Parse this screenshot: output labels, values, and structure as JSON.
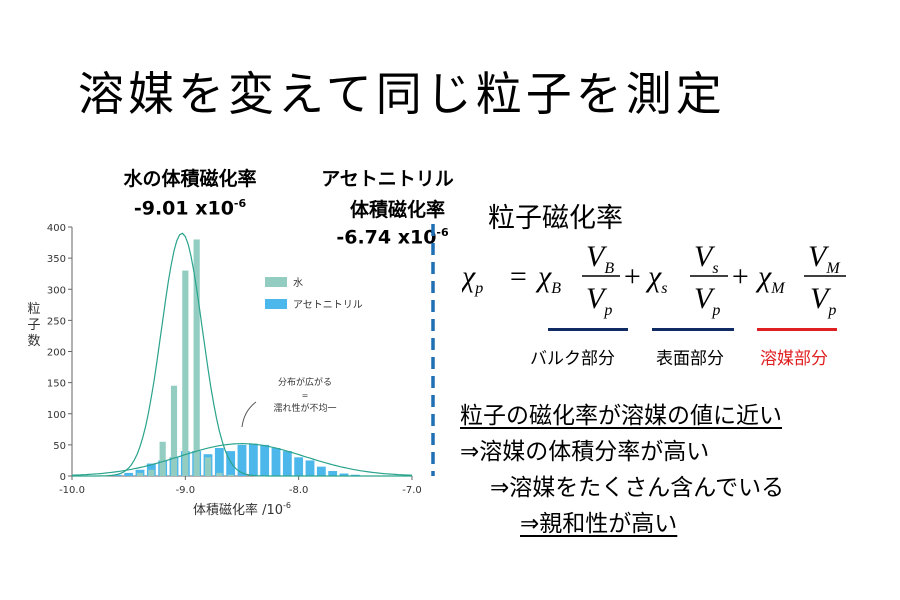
{
  "title": "溶媒を変えて同じ粒子を測定",
  "water_label": {
    "line1": "水の体積磁化率",
    "line2": "-9.01 x10",
    "exp": "-6"
  },
  "acn_label": {
    "line1": "アセトニトリル",
    "line2": "体積磁化率",
    "line3": "-6.74 x10",
    "exp": "-6"
  },
  "colors": {
    "water": "#93cdc2",
    "acetonitrile": "#4cb7ea",
    "dashed_line": "#1f6fb3",
    "blue_underline": "#102a63",
    "red_underline": "#e02020",
    "red_text": "#e02020"
  },
  "chart_data": {
    "type": "bar",
    "ylabel": "粒子数",
    "xlabel_main": "体積磁化率 /10",
    "xlabel_exp": "-6",
    "xlim": [
      -10.0,
      -7.0
    ],
    "ylim": [
      0,
      400
    ],
    "xticks": [
      "-10.0",
      "-9.0",
      "-8.0",
      "-7.0"
    ],
    "yticks": [
      "0",
      "50",
      "100",
      "150",
      "200",
      "250",
      "300",
      "350",
      "400"
    ],
    "legend": [
      "水",
      "アセトニトリル"
    ],
    "legend_position": "upper-right",
    "annotation": {
      "line1": "分布が広がる",
      "line2": "=",
      "line3": "濡れ性が不均一"
    },
    "series": [
      {
        "name": "水",
        "bin_centers": [
          -9.4,
          -9.3,
          -9.2,
          -9.1,
          -9.0,
          -8.9,
          -8.8,
          -8.7,
          -8.6
        ],
        "values": [
          5,
          10,
          55,
          145,
          330,
          380,
          30,
          5,
          2
        ]
      },
      {
        "name": "アセトニトリル",
        "bin_centers": [
          -9.6,
          -9.5,
          -9.4,
          -9.3,
          -9.2,
          -9.1,
          -9.0,
          -8.9,
          -8.8,
          -8.7,
          -8.6,
          -8.5,
          -8.4,
          -8.3,
          -8.2,
          -8.1,
          -8.0,
          -7.9,
          -7.8,
          -7.7,
          -7.6,
          -7.5
        ],
        "values": [
          2,
          5,
          10,
          20,
          25,
          30,
          40,
          40,
          35,
          45,
          40,
          50,
          52,
          50,
          45,
          40,
          30,
          25,
          15,
          8,
          4,
          2
        ]
      }
    ]
  },
  "formula": {
    "heading": "粒子磁化率",
    "chi": "χ",
    "p": "p",
    "B": "B",
    "s": "s",
    "M": "M",
    "V": "V",
    "eq": "=",
    "plus": "+"
  },
  "parts": {
    "bulk": "バルク部分",
    "surface": "表面部分",
    "solvent": "溶媒部分"
  },
  "conclusion": [
    "粒子の磁化率が溶媒の値に近い",
    "⇒溶媒の体積分率が高い",
    "⇒溶媒をたくさん含んでいる",
    "⇒親和性が高い"
  ]
}
